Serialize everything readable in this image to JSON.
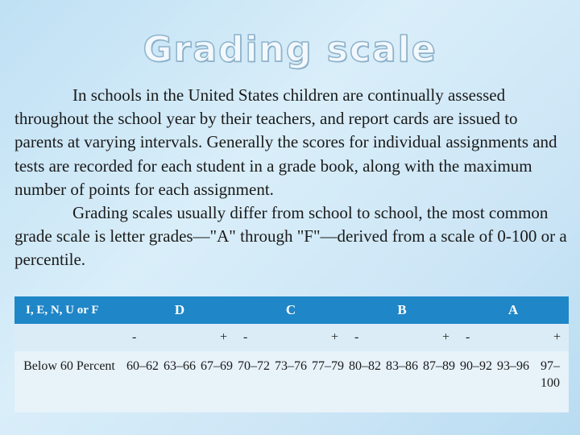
{
  "title": "Grading scale",
  "paragraphs": [
    "In schools in the United States children are continually assessed throughout the school year by their teachers, and report cards are issued to parents at varying intervals. Generally the scores for individual assignments and tests are recorded for each student in a grade book, along with the maximum number of points for each assignment.",
    "Grading scales usually differ from school to school, the most common grade scale is letter grades—\"A\" through \"F\"—derived from a scale of 0-100 or a percentile."
  ],
  "table": {
    "headers": [
      "I, E, N, U or F",
      "D",
      "C",
      "B",
      "A"
    ],
    "modifiers": {
      "D": [
        "-",
        "+"
      ],
      "C": [
        "-",
        "+"
      ],
      "B": [
        "-",
        "+"
      ],
      "A": [
        "-",
        "+"
      ]
    },
    "fail_value": "Below 60 Percent",
    "values": [
      "60–62",
      "63–66",
      "67–69",
      "70–72",
      "73–76",
      "77–79",
      "80–82",
      "83–86",
      "87–89",
      "90–92",
      "93–96",
      "97–100"
    ]
  }
}
